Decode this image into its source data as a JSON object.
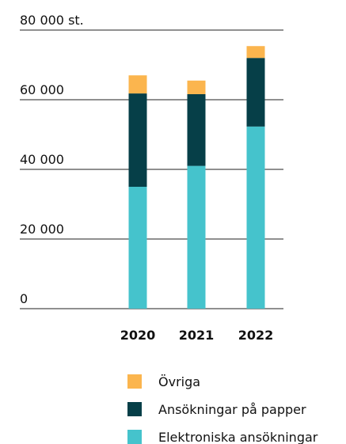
{
  "chart_data": {
    "type": "stacked_bar",
    "categories": [
      "2020",
      "2021",
      "2022"
    ],
    "series": [
      {
        "name": "Övriga",
        "color": "#fbb54e",
        "values": [
          5200,
          3900,
          3400
        ]
      },
      {
        "name": "Ansökningar på papper",
        "color": "#063f48",
        "values": [
          26800,
          20600,
          19700
        ]
      },
      {
        "name": "Elektroniska ansökningar",
        "color": "#45c3cc",
        "values": [
          35000,
          41000,
          52300
        ]
      }
    ],
    "ylim": [
      0,
      80000
    ],
    "yticks": [
      {
        "value": 0,
        "label": "0"
      },
      {
        "value": 20000,
        "label": "20 000"
      },
      {
        "value": 40000,
        "label": "40 000"
      },
      {
        "value": 60000,
        "label": "60 000"
      },
      {
        "value": 80000,
        "label": "80 000 st."
      }
    ],
    "grid": true
  }
}
